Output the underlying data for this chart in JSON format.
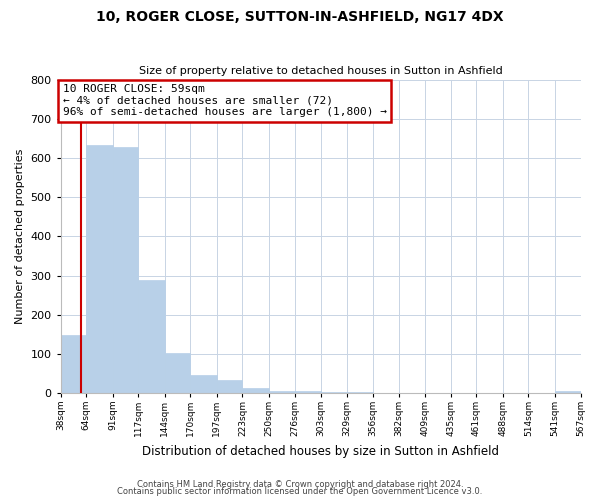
{
  "title": "10, ROGER CLOSE, SUTTON-IN-ASHFIELD, NG17 4DX",
  "subtitle": "Size of property relative to detached houses in Sutton in Ashfield",
  "xlabel": "Distribution of detached houses by size in Sutton in Ashfield",
  "ylabel": "Number of detached properties",
  "bar_edges": [
    38,
    64,
    91,
    117,
    144,
    170,
    197,
    223,
    250,
    276,
    303,
    329,
    356,
    382,
    409,
    435,
    461,
    488,
    514,
    541,
    567
  ],
  "bar_heights": [
    148,
    634,
    628,
    288,
    101,
    46,
    33,
    13,
    6,
    5,
    2,
    1,
    0,
    0,
    0,
    0,
    0,
    0,
    0,
    5
  ],
  "bar_color": "#b8d0e8",
  "property_line_x": 59,
  "annotation_title": "10 ROGER CLOSE: 59sqm",
  "annotation_line1": "← 4% of detached houses are smaller (72)",
  "annotation_line2": "96% of semi-detached houses are larger (1,800) →",
  "annotation_box_facecolor": "#ffffff",
  "annotation_box_edgecolor": "#cc0000",
  "property_line_color": "#cc0000",
  "ylim": [
    0,
    800
  ],
  "yticks": [
    0,
    100,
    200,
    300,
    400,
    500,
    600,
    700,
    800
  ],
  "tick_labels": [
    "38sqm",
    "64sqm",
    "91sqm",
    "117sqm",
    "144sqm",
    "170sqm",
    "197sqm",
    "223sqm",
    "250sqm",
    "276sqm",
    "303sqm",
    "329sqm",
    "356sqm",
    "382sqm",
    "409sqm",
    "435sqm",
    "461sqm",
    "488sqm",
    "514sqm",
    "541sqm",
    "567sqm"
  ],
  "footer1": "Contains HM Land Registry data © Crown copyright and database right 2024.",
  "footer2": "Contains public sector information licensed under the Open Government Licence v3.0.",
  "background_color": "#ffffff",
  "grid_color": "#c8d4e4"
}
